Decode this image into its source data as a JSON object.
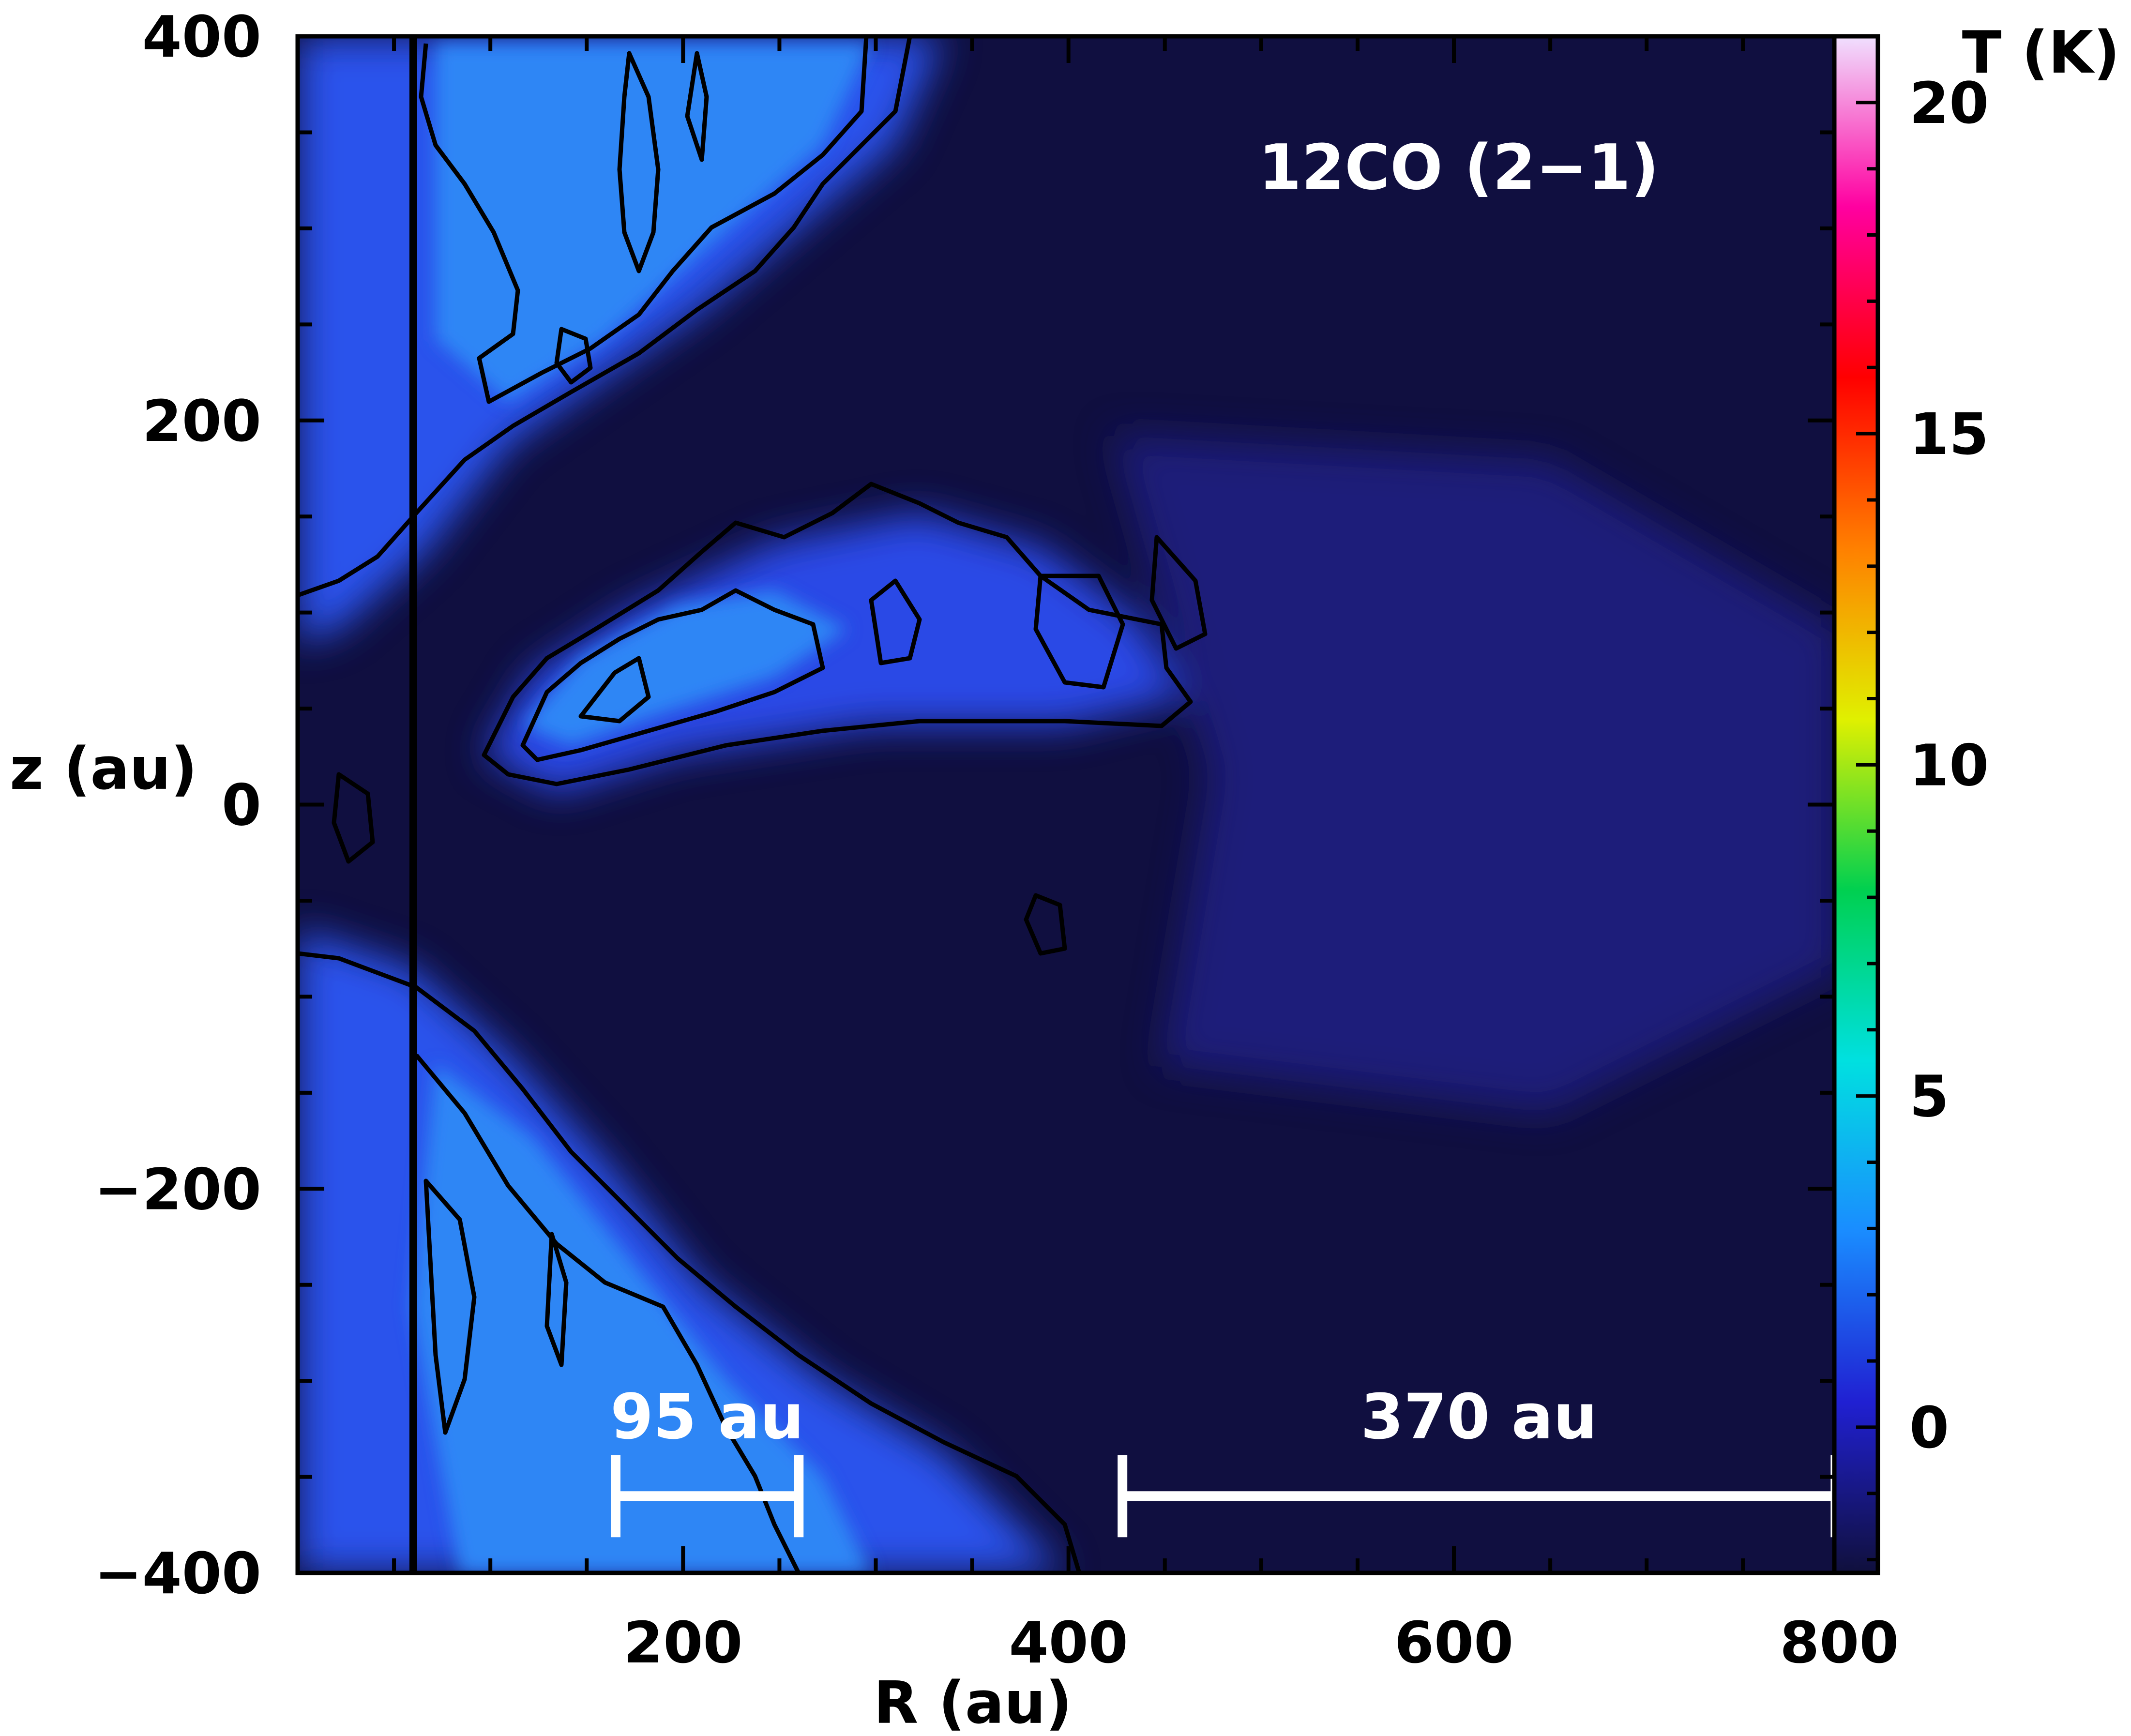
{
  "chart_data": {
    "type": "heatmap",
    "panel_label": "12CO (2−1)",
    "xlabel": "R (au)",
    "ylabel": "z (au)",
    "colorbar_label": "T (K)",
    "xlim": [
      0,
      820
    ],
    "ylim": [
      -400,
      400
    ],
    "clim": [
      -2.2,
      21
    ],
    "x_ticks": [
      {
        "value": 200,
        "label": "200"
      },
      {
        "value": 400,
        "label": "400"
      },
      {
        "value": 600,
        "label": "600"
      },
      {
        "value": 800,
        "label": "800"
      }
    ],
    "y_ticks": [
      {
        "value": 400,
        "label": "400"
      },
      {
        "value": 200,
        "label": "200"
      },
      {
        "value": 0,
        "label": "0"
      },
      {
        "value": -200,
        "label": "−200"
      },
      {
        "value": -400,
        "label": "−400"
      }
    ],
    "colorbar_ticks": [
      {
        "value": 0,
        "label": "0"
      },
      {
        "value": 5,
        "label": "5"
      },
      {
        "value": 10,
        "label": "10"
      },
      {
        "value": 15,
        "label": "15"
      },
      {
        "value": 20,
        "label": "20"
      }
    ],
    "colormap_stops": [
      "#10103c",
      "#2020d2",
      "#1a8cff",
      "#00e0e0",
      "#00d050",
      "#e0f000",
      "#ff8000",
      "#ff0000",
      "#ff00a0",
      "#f0e0ff"
    ],
    "vertical_line_R": 60,
    "scale_bars": [
      {
        "label": "95 au",
        "R_start": 165,
        "R_end": 260,
        "z": -360
      },
      {
        "label": "370 au",
        "R_start": 428,
        "R_end": 798,
        "z": -360
      }
    ],
    "emission_regions_K": [
      {
        "region": "upper lobe",
        "peak_T": 3.0
      },
      {
        "region": "midplane tongue",
        "peak_T": 3.2
      },
      {
        "region": "lower lobe",
        "peak_T": 3.0
      },
      {
        "region": "outer disk",
        "peak_T": 0.3
      }
    ]
  }
}
